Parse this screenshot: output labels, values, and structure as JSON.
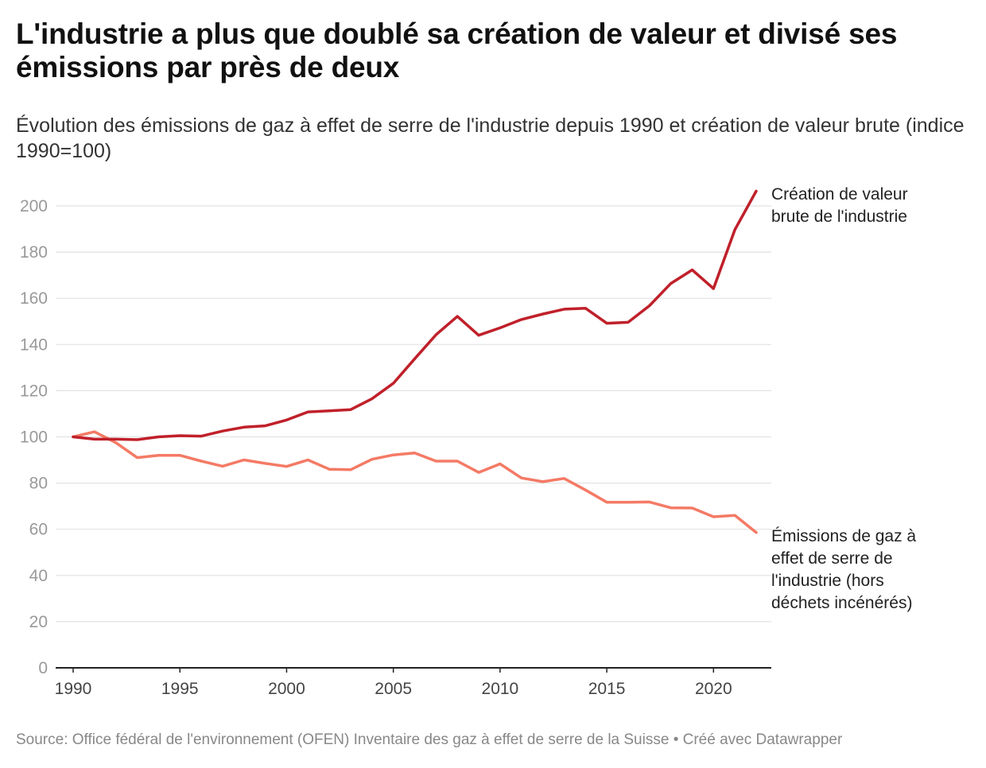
{
  "header": {
    "title": "L'industrie a plus que doublé sa création de valeur et divisé ses émissions par près de deux",
    "subtitle": "Évolution des émissions de gaz à effet de serre de l'industrie depuis 1990 et création de valeur brute (indice 1990=100)"
  },
  "footer": {
    "source": "Source: Office fédéral de l'environnement (OFEN) Inventaire des gaz à effet de serre de la Suisse • Créé avec Datawrapper"
  },
  "chart_data": {
    "type": "line",
    "title": "L'industrie a plus que doublé sa création de valeur et divisé ses émissions par près de deux",
    "subtitle": "Évolution des émissions de gaz à effet de serre de l'industrie depuis 1990 et création de valeur brute (indice 1990=100)",
    "xlabel": "",
    "ylabel": "",
    "x": [
      1990,
      1991,
      1992,
      1993,
      1994,
      1995,
      1996,
      1997,
      1998,
      1999,
      2000,
      2001,
      2002,
      2003,
      2004,
      2005,
      2006,
      2007,
      2008,
      2009,
      2010,
      2011,
      2012,
      2013,
      2014,
      2015,
      2016,
      2017,
      2018,
      2019,
      2020,
      2021,
      2022
    ],
    "xticks": [
      1990,
      1995,
      2000,
      2005,
      2010,
      2015,
      2020
    ],
    "yticks": [
      0,
      20,
      40,
      60,
      80,
      100,
      120,
      140,
      160,
      180,
      200
    ],
    "ylim": [
      0,
      207
    ],
    "xlim": [
      1990,
      2022
    ],
    "grid": true,
    "legend": "direct-labels-right",
    "series": [
      {
        "name": "Création de valeur brute de l'industrie",
        "label_lines": [
          "Création de valeur",
          "brute de l'industrie"
        ],
        "color": "#c0202a",
        "values": [
          100,
          99,
          99,
          98.8,
          100,
          100.5,
          100.3,
          102.5,
          104.2,
          104.8,
          107.3,
          110.8,
          111.3,
          111.8,
          116.5,
          123.2,
          133.8,
          144.2,
          152.2,
          144,
          147.2,
          150.8,
          153.2,
          155.3,
          155.7,
          149.2,
          149.6,
          156.8,
          166.4,
          172.3,
          164.2,
          189.7,
          206.4
        ]
      },
      {
        "name": "Émissions de gaz à effet de serre de l'industrie (hors déchets incénérés)",
        "label_lines": [
          "Émissions de gaz à",
          "effet de serre de",
          "l'industrie (hors",
          "déchets incénérés)"
        ],
        "color": "#f47a65",
        "values": [
          100,
          102.2,
          97.5,
          91,
          92,
          92,
          89.5,
          87.3,
          90,
          88.5,
          87.2,
          90,
          86,
          85.8,
          90.3,
          92.2,
          93,
          89.5,
          89.5,
          84.6,
          88.3,
          82.2,
          80.6,
          82,
          77,
          71.7,
          71.7,
          71.8,
          69.3,
          69.2,
          65.4,
          66,
          58.6
        ]
      }
    ]
  }
}
